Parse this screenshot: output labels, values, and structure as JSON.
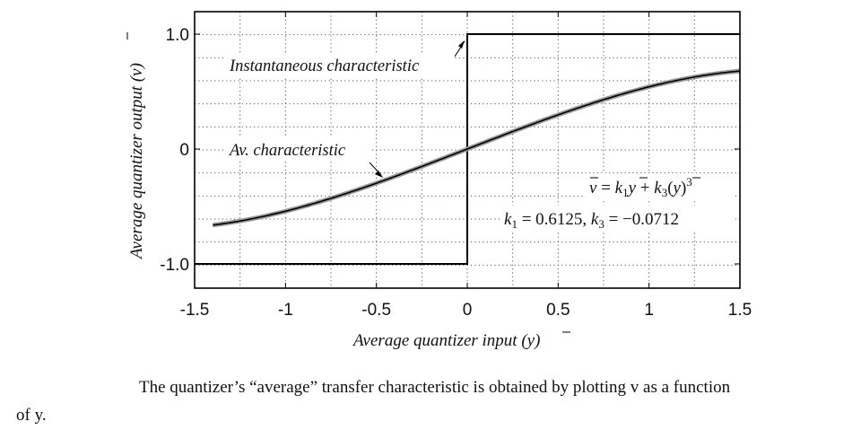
{
  "chart_data": {
    "type": "line",
    "xlabel": "Average quantizer input (y)",
    "ylabel": "Average quantizer output (v)",
    "xlim": [
      -1.5,
      1.5
    ],
    "ylim": [
      -1.0,
      1.0
    ],
    "xticks": [
      "-1.5",
      "-1",
      "-0.5",
      "0",
      "0.5",
      "1",
      "1.5"
    ],
    "xtick_values": [
      -1.5,
      -1,
      -0.5,
      0,
      0.5,
      1,
      1.5
    ],
    "yticks": [
      "1.0",
      "0",
      "-1.0"
    ],
    "ytick_values": [
      1.0,
      0,
      -1.0
    ],
    "grid": true,
    "series": [
      {
        "name": "Instantaneous characteristic",
        "kind": "step",
        "x": [
          -1.5,
          0,
          0,
          1.5
        ],
        "y": [
          -1.0,
          -1.0,
          1.0,
          1.0
        ]
      },
      {
        "name": "Av. characteristic",
        "kind": "cubic",
        "x_range": [
          -1.4,
          1.5
        ],
        "k1": 0.6125,
        "k3": -0.0712
      }
    ],
    "annotations": {
      "instantaneous": "Instantaneous characteristic",
      "average": "Av. characteristic",
      "equation": "v = k1y + k3(y)3",
      "coefficients": "k1 = 0.6125, k3 = −0.0712"
    }
  },
  "caption": {
    "line1": "The quantizer’s “average” transfer characteristic is obtained by plotting v as a function",
    "line2": "of y."
  }
}
